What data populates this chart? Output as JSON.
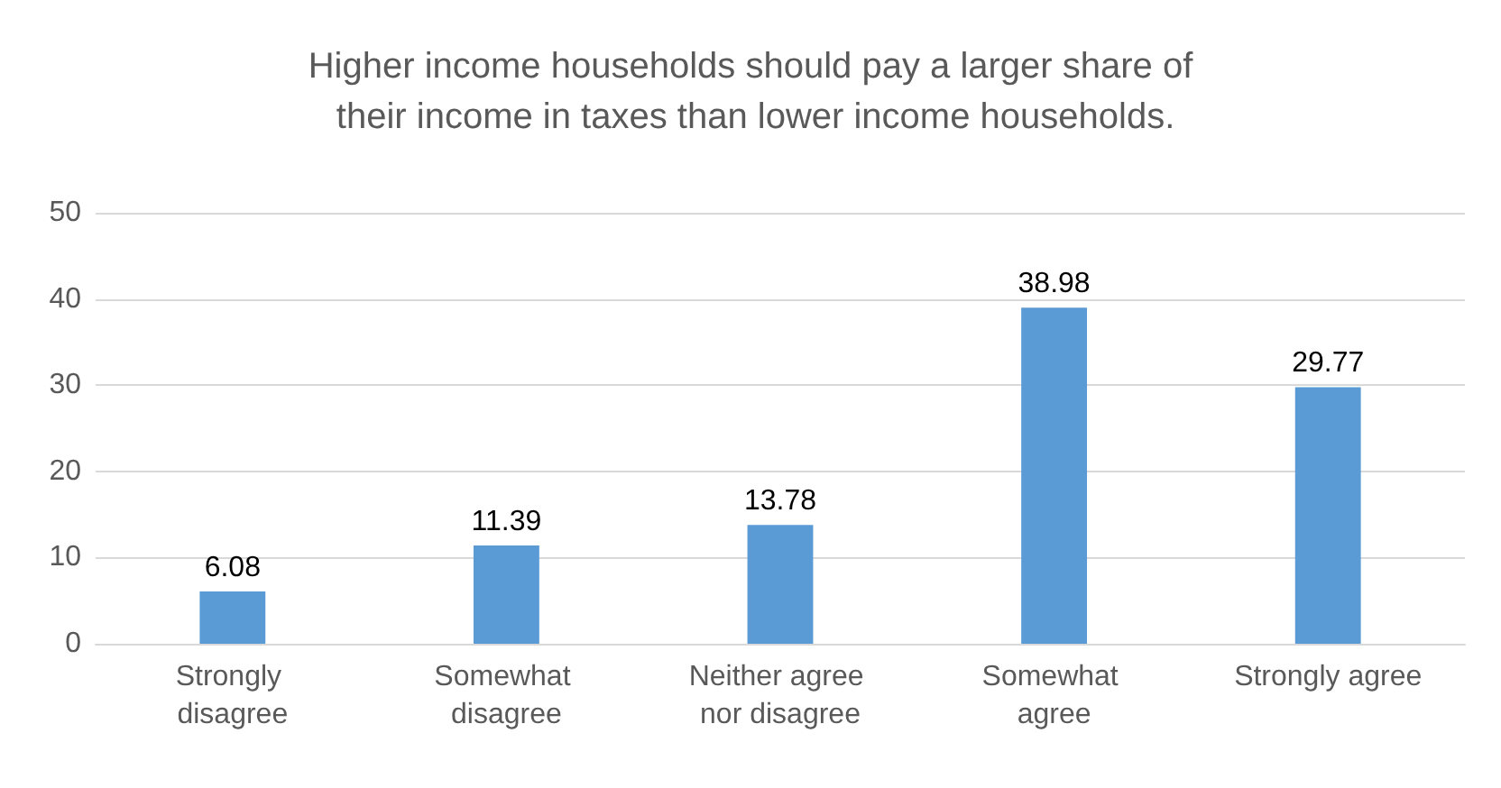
{
  "chart_data": {
    "type": "bar",
    "title": "Higher income households should pay a larger share of their income in taxes than lower income households.",
    "categories": [
      "Strongly disagree",
      "Somewhat disagree",
      "Neither agree nor disagree",
      "Somewhat agree",
      "Strongly agree"
    ],
    "values": [
      6.08,
      11.39,
      13.78,
      38.98,
      29.77
    ],
    "color": "#5b9bd5",
    "ylim": [
      0,
      50
    ],
    "yticks": [
      0,
      10,
      20,
      30,
      40,
      50
    ],
    "grid": "y",
    "data_labels": true
  }
}
